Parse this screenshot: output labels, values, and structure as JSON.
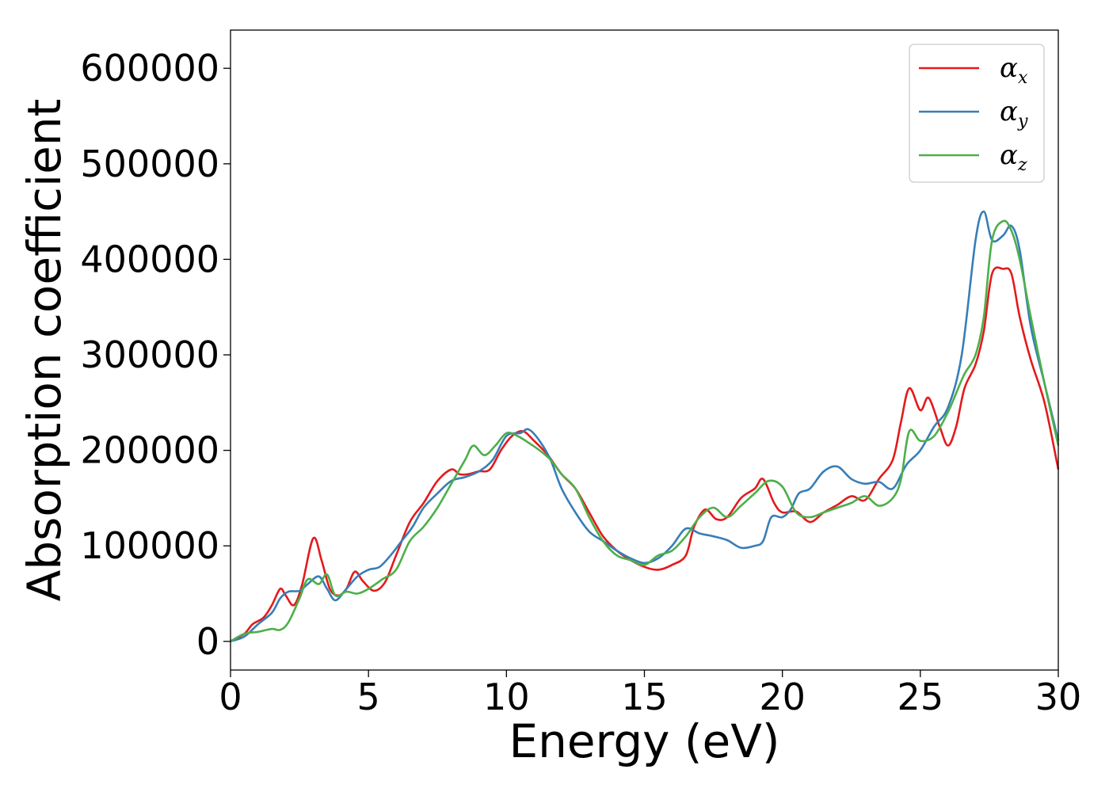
{
  "chart_data": {
    "type": "line",
    "xlabel": "Energy (eV)",
    "ylabel": "Absorption coefficient",
    "xlim": [
      0,
      30
    ],
    "ylim": [
      -30000,
      640000
    ],
    "xticks": [
      0,
      5,
      10,
      15,
      20,
      25,
      30
    ],
    "yticks": [
      0,
      100000,
      200000,
      300000,
      400000,
      500000,
      600000
    ],
    "xtick_labels": [
      "0",
      "5",
      "10",
      "15",
      "20",
      "25",
      "30"
    ],
    "ytick_labels": [
      "0",
      "100000",
      "200000",
      "300000",
      "400000",
      "500000",
      "600000"
    ],
    "grid": false,
    "legend_position": "top-right",
    "series": [
      {
        "name": "αx",
        "symbol": "α",
        "subscript": "x",
        "color": "#e41a1c",
        "x": [
          0,
          0.5,
          0.8,
          1.2,
          1.5,
          1.8,
          2.0,
          2.3,
          2.6,
          3.0,
          3.3,
          3.6,
          3.9,
          4.2,
          4.5,
          4.8,
          5.2,
          5.6,
          6.0,
          6.5,
          7.0,
          7.5,
          8.0,
          8.3,
          8.6,
          9.0,
          9.4,
          9.8,
          10.2,
          10.6,
          11.0,
          11.5,
          12.0,
          12.5,
          13.0,
          13.5,
          14.0,
          14.5,
          15.0,
          15.5,
          16.0,
          16.5,
          16.8,
          17.2,
          17.6,
          18.0,
          18.5,
          19.0,
          19.3,
          19.7,
          20.0,
          20.5,
          21.0,
          21.5,
          22.0,
          22.5,
          23.0,
          23.5,
          24.0,
          24.3,
          24.6,
          25.0,
          25.3,
          25.7,
          26.0,
          26.3,
          26.6,
          27.0,
          27.3,
          27.6,
          28.0,
          28.3,
          28.6,
          29.0,
          29.5,
          30.0
        ],
        "y": [
          0,
          8000,
          18000,
          25000,
          38000,
          55000,
          48000,
          38000,
          60000,
          108000,
          85000,
          55000,
          48000,
          55000,
          73000,
          63000,
          53000,
          62000,
          90000,
          125000,
          145000,
          168000,
          180000,
          175000,
          175000,
          178000,
          180000,
          200000,
          215000,
          220000,
          210000,
          195000,
          175000,
          160000,
          135000,
          110000,
          95000,
          85000,
          78000,
          75000,
          80000,
          90000,
          120000,
          138000,
          128000,
          130000,
          150000,
          160000,
          170000,
          145000,
          135000,
          136000,
          125000,
          135000,
          143000,
          152000,
          148000,
          170000,
          190000,
          230000,
          265000,
          242000,
          255000,
          225000,
          205000,
          225000,
          265000,
          290000,
          325000,
          385000,
          390000,
          385000,
          340000,
          295000,
          250000,
          180000
        ]
      },
      {
        "name": "αy",
        "symbol": "α",
        "subscript": "y",
        "color": "#377eb8",
        "x": [
          0,
          0.5,
          1.0,
          1.5,
          1.8,
          2.1,
          2.5,
          2.8,
          3.2,
          3.5,
          3.8,
          4.2,
          4.6,
          5.0,
          5.4,
          5.8,
          6.2,
          6.6,
          7.0,
          7.5,
          8.0,
          8.5,
          9.0,
          9.5,
          10.0,
          10.5,
          10.8,
          11.2,
          11.6,
          12.0,
          12.5,
          13.0,
          13.5,
          14.0,
          14.5,
          15.0,
          15.5,
          16.0,
          16.5,
          17.0,
          17.5,
          18.0,
          18.5,
          19.0,
          19.3,
          19.6,
          20.0,
          20.3,
          20.6,
          21.0,
          21.5,
          22.0,
          22.5,
          23.0,
          23.5,
          24.0,
          24.5,
          25.0,
          25.5,
          26.0,
          26.5,
          27.0,
          27.3,
          27.6,
          28.0,
          28.3,
          28.6,
          29.0,
          29.5,
          30.0
        ],
        "y": [
          0,
          5000,
          18000,
          30000,
          45000,
          52000,
          53000,
          60000,
          68000,
          55000,
          43000,
          55000,
          68000,
          75000,
          78000,
          90000,
          105000,
          120000,
          140000,
          155000,
          168000,
          172000,
          178000,
          190000,
          215000,
          218000,
          222000,
          210000,
          190000,
          160000,
          135000,
          115000,
          105000,
          95000,
          87000,
          82000,
          87000,
          100000,
          118000,
          113000,
          110000,
          106000,
          98000,
          100000,
          105000,
          130000,
          130000,
          138000,
          155000,
          160000,
          178000,
          183000,
          170000,
          165000,
          167000,
          160000,
          185000,
          200000,
          225000,
          245000,
          300000,
          420000,
          450000,
          420000,
          425000,
          435000,
          410000,
          330000,
          270000,
          210000
        ]
      },
      {
        "name": "αz",
        "symbol": "α",
        "subscript": "z",
        "color": "#4daf4a",
        "x": [
          0,
          0.5,
          1.0,
          1.5,
          1.8,
          2.1,
          2.5,
          2.8,
          3.2,
          3.5,
          3.8,
          4.2,
          4.6,
          5.0,
          5.5,
          6.0,
          6.5,
          7.0,
          7.5,
          8.0,
          8.5,
          8.8,
          9.2,
          9.6,
          10.0,
          10.4,
          10.8,
          11.2,
          11.6,
          12.0,
          12.5,
          13.0,
          13.5,
          14.0,
          14.5,
          15.0,
          15.5,
          16.0,
          16.5,
          17.0,
          17.5,
          18.0,
          18.5,
          19.0,
          19.5,
          20.0,
          20.5,
          21.0,
          21.5,
          22.0,
          22.5,
          23.0,
          23.5,
          24.0,
          24.3,
          24.6,
          25.0,
          25.5,
          26.0,
          26.3,
          26.6,
          27.0,
          27.3,
          27.6,
          28.0,
          28.3,
          28.6,
          29.0,
          29.5,
          30.0
        ],
        "y": [
          0,
          8000,
          10000,
          13000,
          12000,
          20000,
          45000,
          65000,
          60000,
          70000,
          48000,
          52000,
          50000,
          55000,
          65000,
          75000,
          105000,
          120000,
          140000,
          165000,
          190000,
          205000,
          195000,
          205000,
          218000,
          215000,
          208000,
          200000,
          190000,
          175000,
          160000,
          130000,
          105000,
          90000,
          85000,
          80000,
          90000,
          95000,
          110000,
          130000,
          140000,
          130000,
          142000,
          155000,
          168000,
          162000,
          135000,
          130000,
          135000,
          140000,
          145000,
          152000,
          142000,
          150000,
          170000,
          220000,
          210000,
          215000,
          240000,
          260000,
          280000,
          300000,
          340000,
          420000,
          440000,
          430000,
          400000,
          340000,
          270000,
          205000
        ]
      }
    ]
  }
}
